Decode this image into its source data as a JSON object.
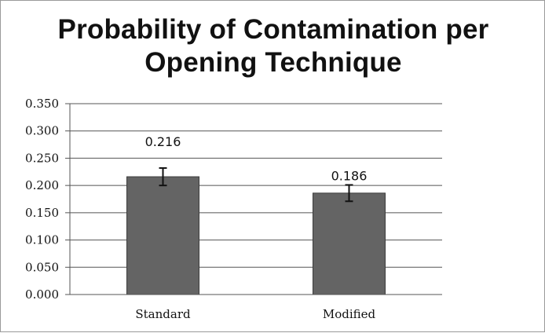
{
  "chart_data": {
    "type": "bar",
    "title_lines": [
      "Probability of Contamination per",
      "Opening Technique"
    ],
    "xlabel": "",
    "ylabel": "",
    "categories": [
      "Standard",
      "Modified"
    ],
    "values": [
      0.216,
      0.186
    ],
    "error_bars": [
      0.016,
      0.015
    ],
    "data_labels": [
      "0.216",
      "0.186"
    ],
    "ylim": [
      0,
      0.35
    ],
    "yticks": [
      "0.000",
      "0.050",
      "0.100",
      "0.150",
      "0.200",
      "0.250",
      "0.300",
      "0.350"
    ],
    "grid": true,
    "legend": "none",
    "bar_color": "#646464",
    "bar_edge_color": "#3c3c3c",
    "grid_color": "#555555"
  }
}
